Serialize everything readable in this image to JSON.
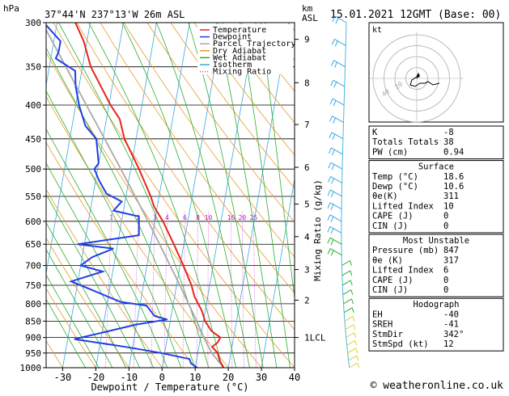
{
  "header": {
    "pressure_unit": "hPa",
    "location": "37°44'N  237°13'W  26m  ASL",
    "height_unit": "km",
    "height_unit2": "ASL",
    "datetime": "15.01.2021  12GMT  (Base: 00)"
  },
  "chart_data": {
    "type": "skewt",
    "title": "37°44'N  237°13'W  26m  ASL",
    "xlabel": "Dewpoint / Temperature (°C)",
    "ylabel": "hPa",
    "ylabel_right": "Mixing Ratio (g/kg)",
    "xlim": [
      -35,
      40
    ],
    "ylim": [
      1000,
      300
    ],
    "x_ticks": [
      -30,
      -20,
      -10,
      0,
      10,
      20,
      30,
      40
    ],
    "p_ticks": [
      300,
      350,
      400,
      450,
      500,
      550,
      600,
      650,
      700,
      750,
      800,
      850,
      900,
      950,
      1000
    ],
    "km_ticks": [
      {
        "km": 1,
        "p": 900,
        "label": "1LCL"
      },
      {
        "km": 2,
        "p": 790,
        "label": "2"
      },
      {
        "km": 3,
        "p": 710,
        "label": "3"
      },
      {
        "km": 4,
        "p": 633,
        "label": "4"
      },
      {
        "km": 5,
        "p": 565,
        "label": "5"
      },
      {
        "km": 6,
        "p": 497,
        "label": "6"
      },
      {
        "km": 7,
        "p": 428,
        "label": "7"
      },
      {
        "km": 8,
        "p": 370,
        "label": "8"
      },
      {
        "km": 9,
        "p": 318,
        "label": "9"
      }
    ],
    "mixing_ratio_labels": [
      "1",
      "2",
      "3",
      "4",
      "6",
      "8",
      "10",
      "16",
      "20",
      "25"
    ],
    "mixing_ratio_values": [
      1,
      2,
      3,
      4,
      6,
      8,
      10,
      16,
      20,
      25
    ],
    "legend": [
      "Temperature",
      "Dewpoint",
      "Parcel Trajectory",
      "Dry Adiabat",
      "Wet Adiabat",
      "Isotherm",
      "Mixing Ratio"
    ],
    "series": [
      {
        "name": "Temperature",
        "color": "#e8251f",
        "points": [
          [
            1000,
            18.6
          ],
          [
            975,
            17.0
          ],
          [
            950,
            16.0
          ],
          [
            930,
            14.0
          ],
          [
            915,
            15.5
          ],
          [
            900,
            16.0
          ],
          [
            880,
            13.0
          ],
          [
            850,
            10.5
          ],
          [
            820,
            9.0
          ],
          [
            800,
            7.5
          ],
          [
            780,
            6.0
          ],
          [
            750,
            4.5
          ],
          [
            700,
            1.0
          ],
          [
            650,
            -3.0
          ],
          [
            600,
            -7.5
          ],
          [
            570,
            -11.0
          ],
          [
            550,
            -12.5
          ],
          [
            500,
            -17.5
          ],
          [
            450,
            -23.5
          ],
          [
            420,
            -26.0
          ],
          [
            400,
            -29.5
          ],
          [
            350,
            -37.5
          ],
          [
            320,
            -41.0
          ],
          [
            300,
            -44.5
          ]
        ]
      },
      {
        "name": "Dewpoint",
        "color": "#1f3fe6",
        "points": [
          [
            1000,
            10.6
          ],
          [
            985,
            8.5
          ],
          [
            970,
            7.8
          ],
          [
            950,
            -1.0
          ],
          [
            930,
            -12.0
          ],
          [
            905,
            -28.0
          ],
          [
            885,
            -20.0
          ],
          [
            860,
            -10.0
          ],
          [
            845,
            -1.0
          ],
          [
            835,
            -5.0
          ],
          [
            805,
            -8.0
          ],
          [
            795,
            -16.0
          ],
          [
            760,
            -26.0
          ],
          [
            740,
            -32.0
          ],
          [
            715,
            -23.0
          ],
          [
            700,
            -30.0
          ],
          [
            680,
            -27.0
          ],
          [
            660,
            -21.0
          ],
          [
            650,
            -32.0
          ],
          [
            630,
            -14.0
          ],
          [
            590,
            -15.0
          ],
          [
            578,
            -23.0
          ],
          [
            560,
            -21.0
          ],
          [
            545,
            -26.0
          ],
          [
            520,
            -29.0
          ],
          [
            500,
            -31.0
          ],
          [
            490,
            -30.0
          ],
          [
            450,
            -32.0
          ],
          [
            430,
            -36.0
          ],
          [
            400,
            -39.0
          ],
          [
            375,
            -41.0
          ],
          [
            355,
            -42.0
          ],
          [
            340,
            -48.5
          ],
          [
            332,
            -48.0
          ],
          [
            320,
            -48.0
          ],
          [
            300,
            -54.0
          ]
        ]
      },
      {
        "name": "Parcel Trajectory",
        "color": "#a8a8a8",
        "points": [
          [
            1000,
            18.6
          ],
          [
            950,
            14.2
          ],
          [
            900,
            11.0
          ],
          [
            850,
            8.0
          ],
          [
            800,
            4.6
          ],
          [
            750,
            1.0
          ],
          [
            700,
            -3.0
          ],
          [
            650,
            -7.3
          ],
          [
            600,
            -12.0
          ],
          [
            550,
            -17.2
          ],
          [
            500,
            -23.0
          ],
          [
            450,
            -29.5
          ],
          [
            400,
            -36.8
          ],
          [
            350,
            -45.0
          ],
          [
            300,
            -54.5
          ]
        ]
      }
    ]
  },
  "hodograph": {
    "unit_label": "kt",
    "ring_labels": [
      "20",
      "40"
    ]
  },
  "indices": [
    {
      "label": "K",
      "value": "-8"
    },
    {
      "label": "Totals Totals",
      "value": "38"
    },
    {
      "label": "PW (cm)",
      "value": "0.94"
    }
  ],
  "surface": {
    "title": "Surface",
    "rows": [
      {
        "label": "Temp (°C)",
        "value": "18.6"
      },
      {
        "label": "Dewp (°C)",
        "value": "10.6"
      },
      {
        "label": "θe(K)",
        "value": "311"
      },
      {
        "label": "Lifted Index",
        "value": "10"
      },
      {
        "label": "CAPE (J)",
        "value": "0"
      },
      {
        "label": "CIN (J)",
        "value": "0"
      }
    ]
  },
  "most_unstable": {
    "title": "Most Unstable",
    "rows": [
      {
        "label": "Pressure (mb)",
        "value": "847"
      },
      {
        "label": "θe (K)",
        "value": "317"
      },
      {
        "label": "Lifted Index",
        "value": "6"
      },
      {
        "label": "CAPE (J)",
        "value": "0"
      },
      {
        "label": "CIN (J)",
        "value": "0"
      }
    ]
  },
  "hodograph_table": {
    "title": "Hodograph",
    "rows": [
      {
        "label": "EH",
        "value": "-40"
      },
      {
        "label": "SREH",
        "value": "-41"
      },
      {
        "label": "StmDir",
        "value": "342°"
      },
      {
        "label": "StmSpd (kt)",
        "value": "12"
      }
    ]
  },
  "footer": {
    "copyright": "© weatheronline.co.uk"
  }
}
